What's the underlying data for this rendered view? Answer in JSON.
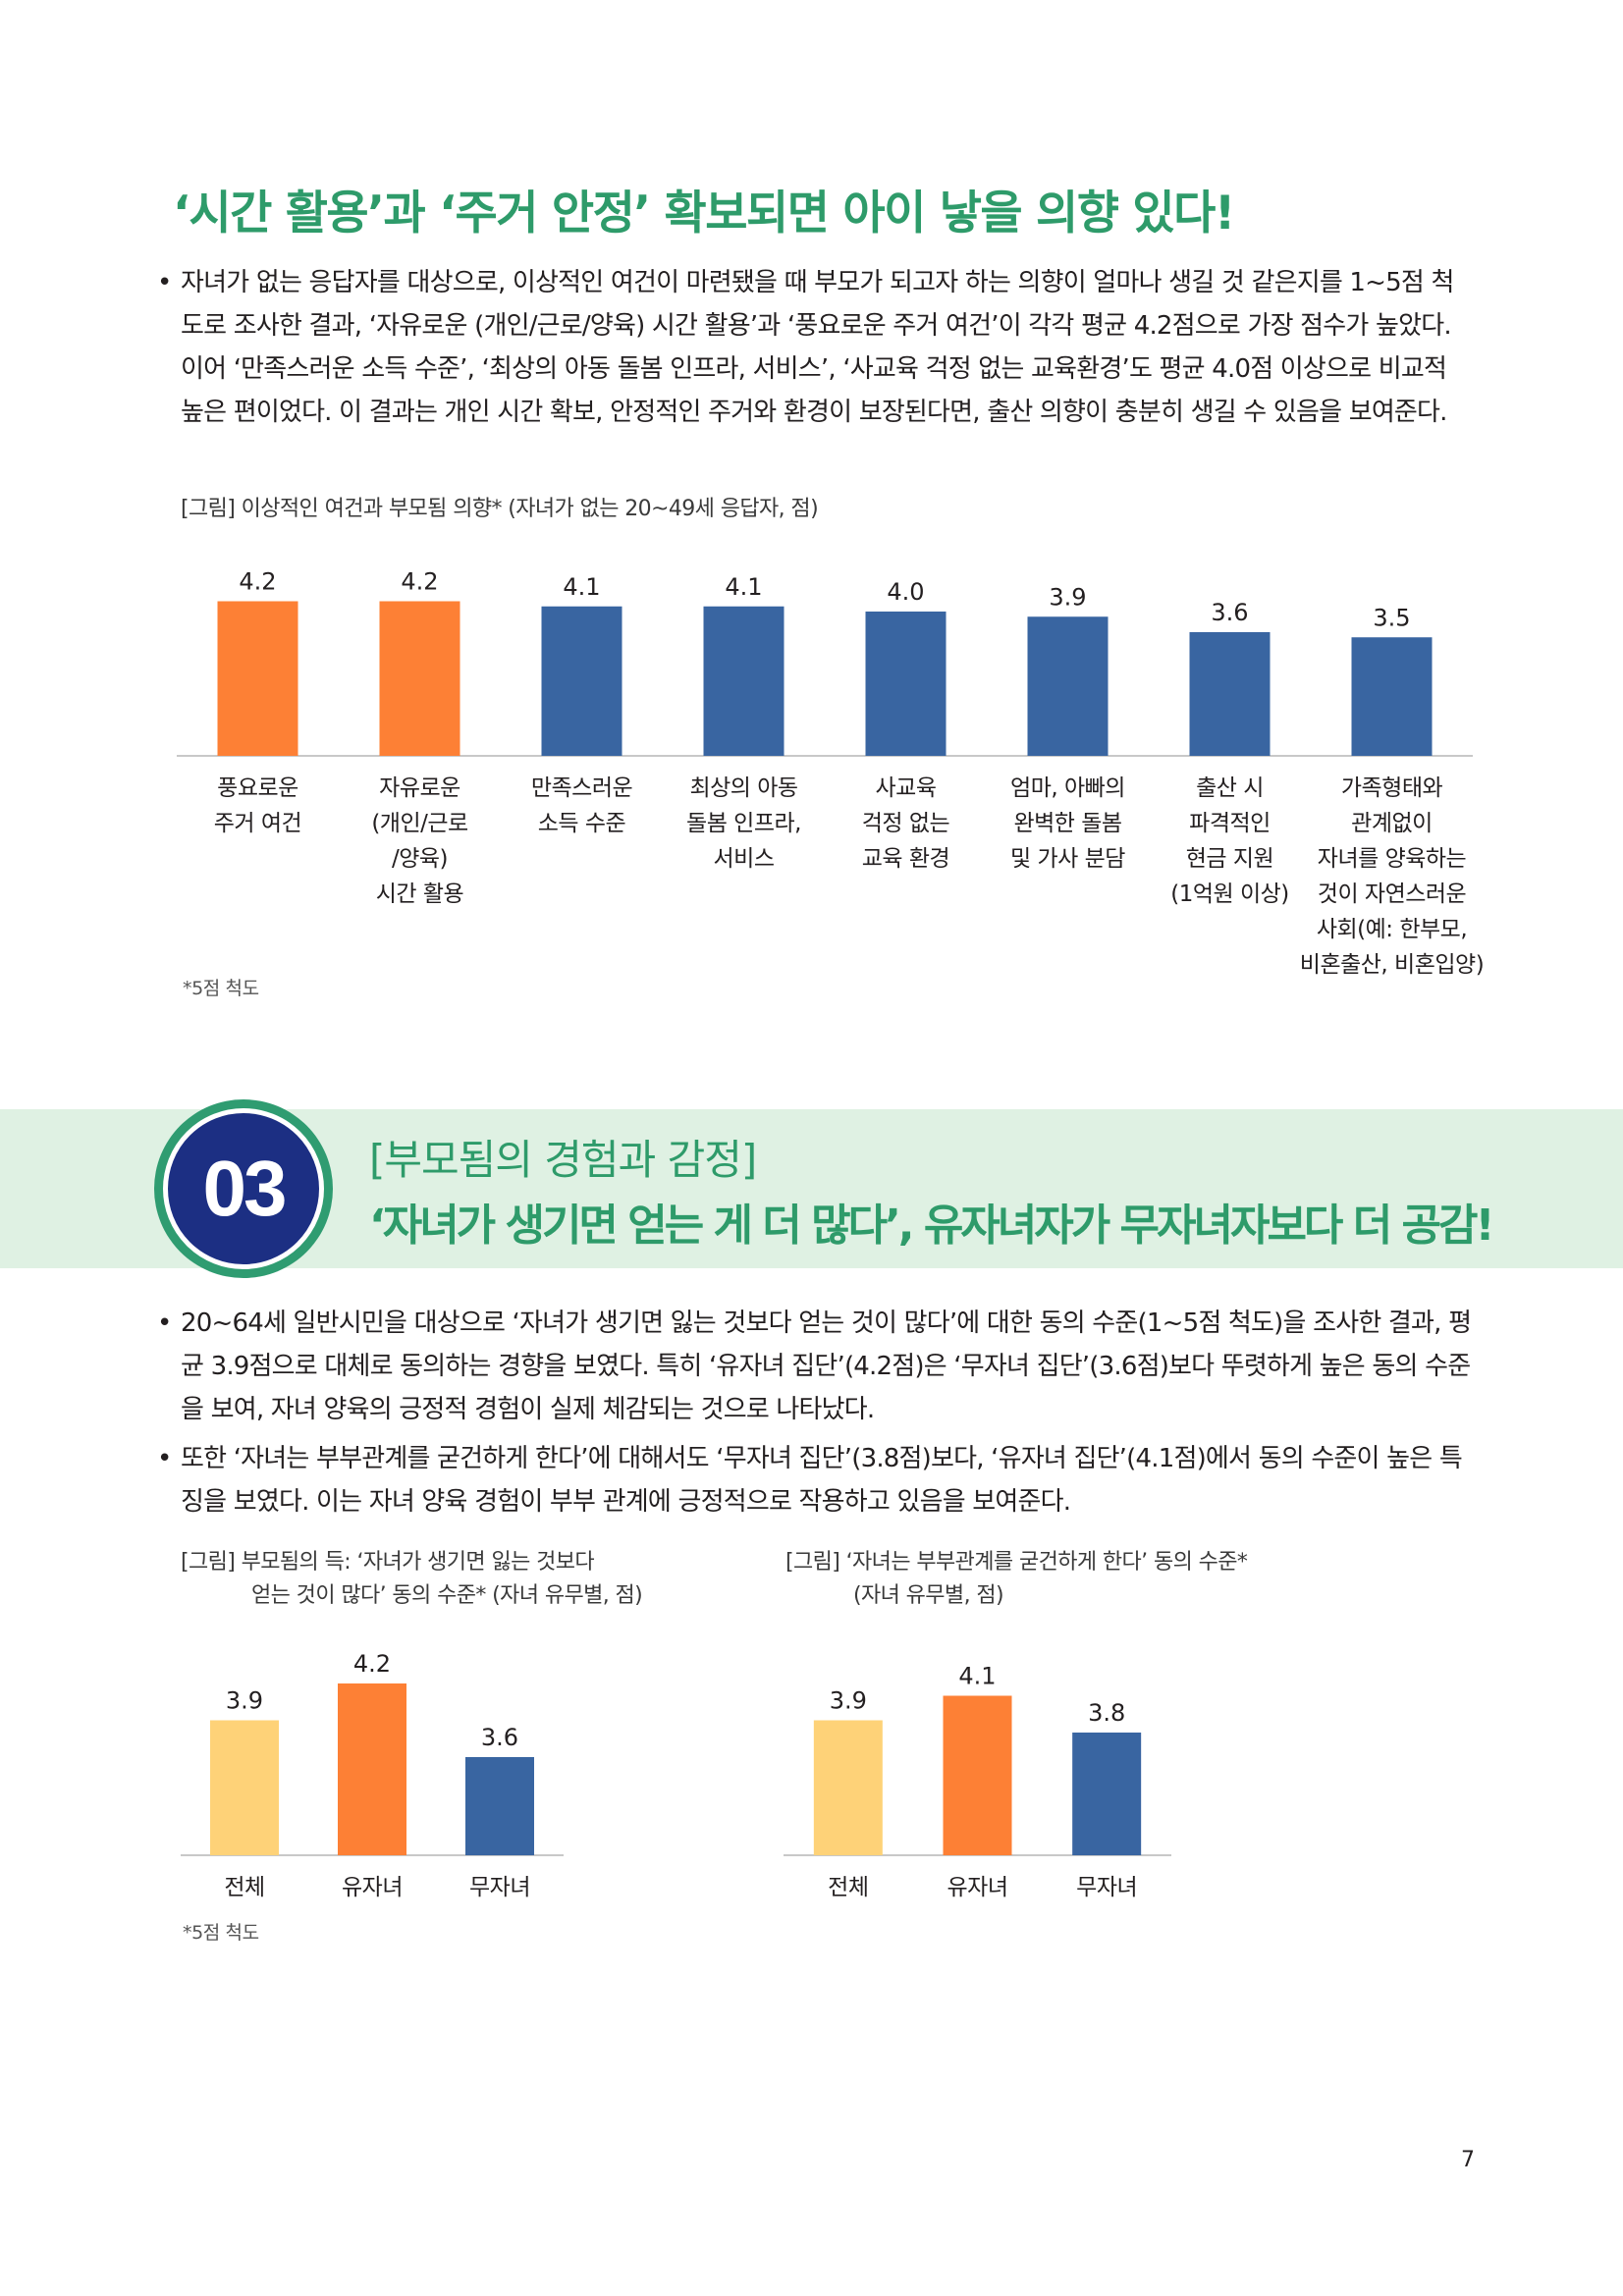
{
  "section1": {
    "headline": "‘시간 활용’과 ‘주거 안정’ 확보되면 아이 낳을 의향 있다!",
    "bullets": [
      "자녀가 없는 응답자를 대상으로, 이상적인 여건이 마련됐을 때 부모가 되고자 하는 의향이 얼마나 생길 것 같은지를 1~5점 척도로 조사한 결과, ‘자유로운 (개인/근로/양육) 시간 활용’과 ‘풍요로운 주거 여건’이 각각 평균 4.2점으로 가장 점수가 높았다. 이어 ‘만족스러운 소득 수준’, ‘최상의 아동 돌봄 인프라, 서비스’, ‘사교육 걱정 없는 교육환경’도 평균 4.0점 이상으로 비교적 높은 편이었다. 이 결과는 개인 시간 확보, 안정적인 주거와 환경이 보장된다면, 출산 의향이 충분히 생길 수 있음을 보여준다."
    ],
    "figure_caption": "[그림] 이상적인 여건과 부모됨 의향* (자녀가 없는 20~49세 응답자, 점)",
    "note": "*5점 척도"
  },
  "section2": {
    "number": "03",
    "subtitle": "[부모됨의 경험과 감정]",
    "title": "‘자녀가 생기면 얻는 게 더 많다’, 유자녀자가 무자녀자보다 더 공감!",
    "bullets": [
      "20~64세 일반시민을 대상으로 ‘자녀가 생기면 잃는 것보다 얻는 것이 많다’에 대한 동의 수준(1~5점 척도)을 조사한 결과, 평균 3.9점으로 대체로 동의하는 경향을 보였다. 특히 ‘유자녀 집단’(4.2점)은 ‘무자녀 집단’(3.6점)보다 뚜렷하게 높은 동의 수준을 보여, 자녀 양육의 긍정적 경험이 실제 체감되는 것으로 나타났다.",
      "또한 ‘자녀는 부부관계를 굳건하게 한다’에 대해서도 ‘무자녀 집단’(3.8점)보다, ‘유자녀 집단’(4.1점)에서 동의 수준이 높은 특징을 보였다. 이는 자녀 양육 경험이 부부 관계에 긍정적으로 작용하고 있음을 보여준다."
    ],
    "figure2_caption_line1": "[그림] 부모됨의 득: ‘자녀가 생기면 잃는 것보다",
    "figure2_caption_line2": "얻는 것이 많다’ 동의 수준* (자녀 유무별, 점)",
    "figure3_caption_line1": "[그림] ‘자녀는 부부관계를 굳건하게 한다’ 동의 수준*",
    "figure3_caption_line2": "(자녀 유무별, 점)",
    "note": "*5점 척도"
  },
  "page_number": "7",
  "colors": {
    "orange": "#fd8035",
    "blue": "#3965a1",
    "yellow": "#fed278",
    "green": "#2e9b6a"
  },
  "chart_data": [
    {
      "type": "bar",
      "title": "[그림] 이상적인 여건과 부모됨 의향* (자녀가 없는 20~49세 응답자, 점)",
      "categories": [
        [
          "풍요로운",
          "주거 여건"
        ],
        [
          "자유로운",
          "(개인/근로",
          "/양육)",
          "시간 활용"
        ],
        [
          "만족스러운",
          "소득 수준"
        ],
        [
          "최상의 아동",
          "돌봄 인프라,",
          "서비스"
        ],
        [
          "사교육",
          "걱정 없는",
          "교육 환경"
        ],
        [
          "엄마, 아빠의",
          "완벽한 돌봄",
          "및 가사 분담"
        ],
        [
          "출산 시",
          "파격적인",
          "현금 지원",
          "(1억원 이상)"
        ],
        [
          "가족형태와",
          "관계없이",
          "자녀를 양육하는",
          "것이 자연스러운",
          "사회(예: 한부모,",
          "비혼출산, 비혼입양)"
        ]
      ],
      "values": [
        4.2,
        4.2,
        4.1,
        4.1,
        4.0,
        3.9,
        3.6,
        3.5
      ],
      "labels": [
        "4.2",
        "4.2",
        "4.1",
        "4.1",
        "4.0",
        "3.9",
        "3.6",
        "3.5"
      ],
      "colors": [
        "orange",
        "orange",
        "blue",
        "blue",
        "blue",
        "blue",
        "blue",
        "blue"
      ],
      "ylim": [
        0,
        4.5
      ],
      "xlabel": "",
      "ylabel": ""
    },
    {
      "type": "bar",
      "title": "[그림] 부모됨의 득: ‘자녀가 생기면 잃는 것보다 얻는 것이 많다’ 동의 수준* (자녀 유무별, 점)",
      "categories": [
        [
          "전체"
        ],
        [
          "유자녀"
        ],
        [
          "무자녀"
        ]
      ],
      "values": [
        3.9,
        4.2,
        3.6
      ],
      "labels": [
        "3.9",
        "4.2",
        "3.6"
      ],
      "colors": [
        "yellow",
        "orange",
        "blue"
      ],
      "ylim": [
        0,
        4.5
      ],
      "xlabel": "",
      "ylabel": ""
    },
    {
      "type": "bar",
      "title": "[그림] ‘자녀는 부부관계를 굳건하게 한다’ 동의 수준* (자녀 유무별, 점)",
      "categories": [
        [
          "전체"
        ],
        [
          "유자녀"
        ],
        [
          "무자녀"
        ]
      ],
      "values": [
        3.9,
        4.1,
        3.8
      ],
      "labels": [
        "3.9",
        "4.1",
        "3.8"
      ],
      "colors": [
        "yellow",
        "orange",
        "blue"
      ],
      "ylim": [
        0,
        4.5
      ],
      "xlabel": "",
      "ylabel": ""
    }
  ]
}
